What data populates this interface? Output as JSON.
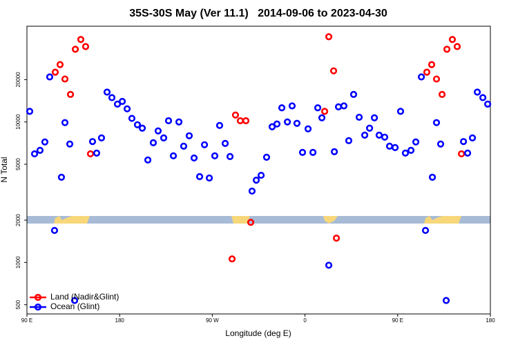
{
  "chart_data": {
    "type": "scatter",
    "title": "35S-30S May (Ver 11.1)   2014-09-06 to 2023-04-30",
    "x_label": "Longitude (deg E)",
    "y_label": "N Total",
    "xlim": [
      90,
      540
    ],
    "xticks": [
      {
        "value": 90,
        "label": "90 E"
      },
      180,
      {
        "value": 270,
        "label": "90 W"
      },
      {
        "value": 360,
        "label": "0"
      },
      {
        "value": 450,
        "label": "90 E"
      },
      {
        "value": 540,
        "label": "180"
      }
    ],
    "ylim": [
      430,
      48000
    ],
    "y_log": true,
    "yticks": [
      500,
      1000,
      2000,
      5000,
      10000,
      20000
    ],
    "legend": "bottom-left",
    "series": [
      {
        "name": "Land (Nadir&Glint)",
        "color": "#ff0000",
        "x": [
          117.5,
          122.2,
          126.9,
          132.3,
          137.0,
          142.3,
          147.0,
          151.7,
          292.5,
          297.2,
          302.6,
          289.2,
          307.3,
          379.1,
          383.1,
          387.8,
          390.5,
          478.3,
          483.0,
          487.7,
          493.1,
          497.8,
          503.1,
          507.8,
          511.9
        ],
        "values": [
          22600,
          25600,
          20200,
          15700,
          32900,
          38600,
          34400,
          5930,
          11200,
          10200,
          10200,
          1060,
          1930,
          11900,
          40400,
          23100,
          1490,
          22600,
          25600,
          20200,
          15700,
          32900,
          38600,
          34400,
          5930
        ]
      },
      {
        "name": "Ocean (Glint)",
        "color": "#0000ff",
        "x": [
          92.7,
          97.4,
          102.7,
          107.4,
          112.1,
          116.8,
          123.5,
          126.9,
          131.6,
          136.3,
          153.7,
          157.7,
          162.4,
          167.8,
          172.5,
          177.9,
          182.6,
          187.3,
          191.9,
          197.3,
          202.0,
          207.4,
          212.7,
          217.4,
          222.8,
          227.5,
          232.2,
          237.6,
          242.2,
          247.6,
          252.3,
          257.7,
          262.4,
          267.1,
          272.4,
          277.1,
          282.5,
          287.2,
          308.6,
          312.7,
          317.4,
          322.7,
          328.1,
          332.8,
          337.5,
          342.9,
          347.5,
          352.2,
          357.6,
          363.0,
          367.7,
          372.4,
          376.4,
          383.1,
          388.5,
          392.5,
          397.8,
          402.5,
          407.2,
          412.6,
          418.0,
          422.7,
          427.4,
          432.0,
          437.4,
          442.1,
          447.5,
          452.8,
          457.5,
          462.9,
          467.6,
          473.0,
          477.0,
          483.7,
          487.7,
          491.7,
          497.1,
          513.9,
          517.9,
          522.6,
          527.3,
          532.7,
          537.4
        ],
        "values": [
          11900,
          5930,
          6280,
          7200,
          20900,
          1690,
          4040,
          9890,
          6960,
          536,
          7250,
          6000,
          7700,
          16300,
          14900,
          13400,
          14000,
          12400,
          10600,
          9550,
          9030,
          5360,
          7110,
          8630,
          7700,
          10200,
          5740,
          10000,
          6720,
          7970,
          5540,
          4080,
          6880,
          3990,
          5740,
          9440,
          7030,
          5670,
          3220,
          3850,
          4170,
          5610,
          9240,
          9670,
          12600,
          10000,
          13000,
          9770,
          6070,
          8930,
          6070,
          12600,
          10700,
          955,
          6140,
          12800,
          13000,
          7360,
          15700,
          10800,
          8050,
          9030,
          10700,
          8050,
          7790,
          6720,
          6570,
          11900,
          6000,
          6280,
          7200,
          20900,
          1690,
          4040,
          9890,
          6960,
          536,
          7250,
          6000,
          7700,
          16300,
          14900,
          13400
        ]
      }
    ]
  }
}
